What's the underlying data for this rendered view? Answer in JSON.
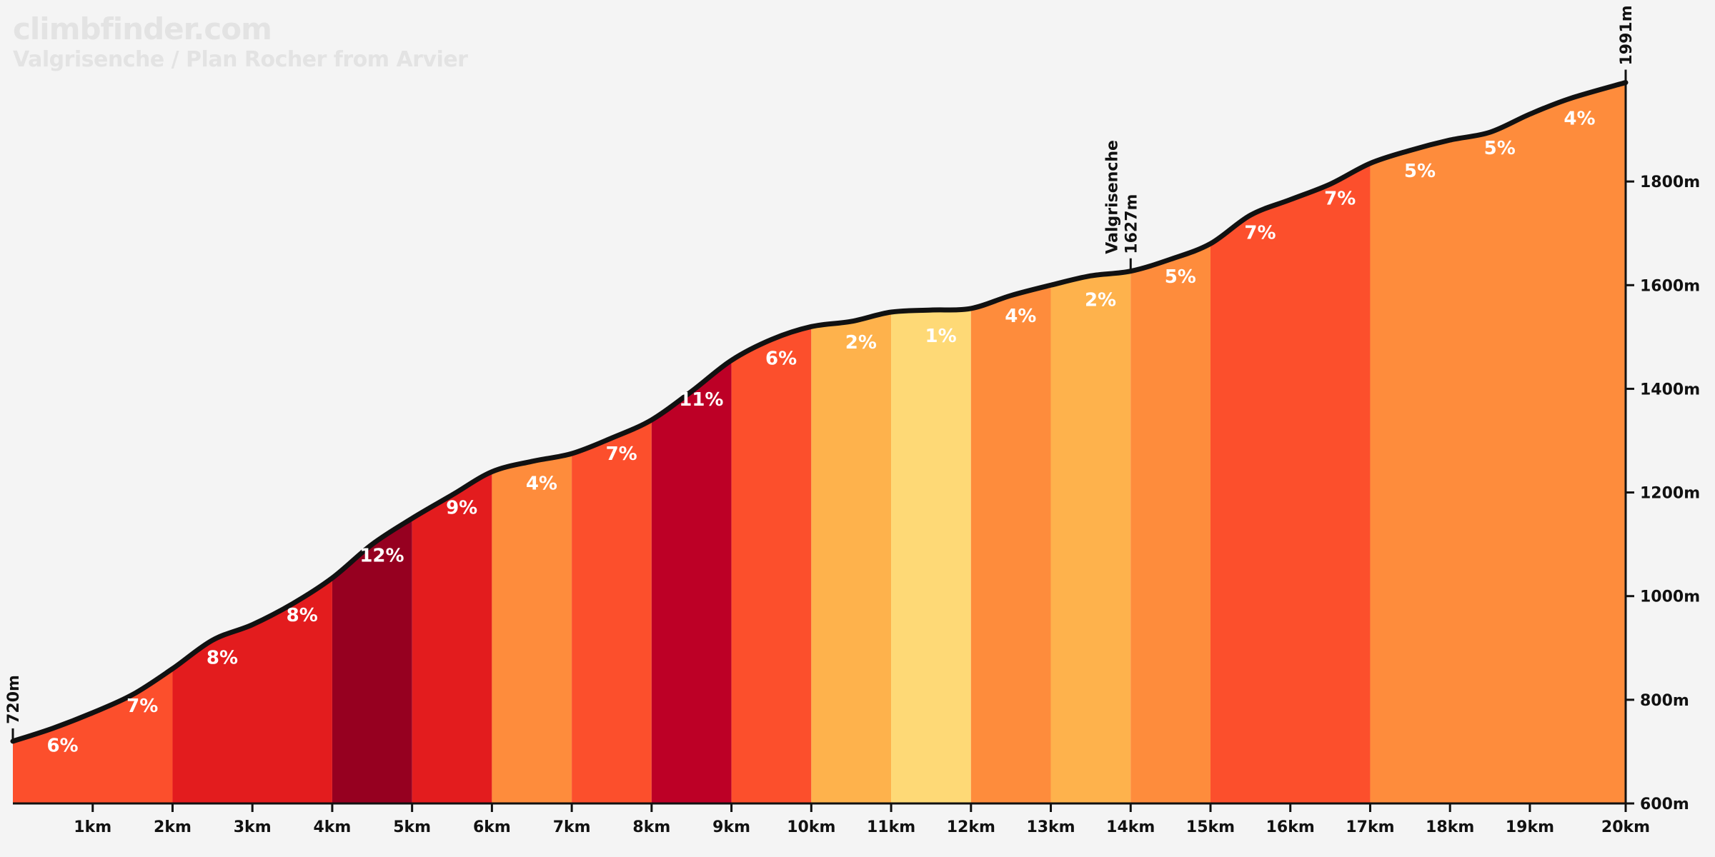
{
  "header": {
    "brand": "climbfinder.com",
    "title": "Valgrisenche / Plan Rocher from Arvier"
  },
  "chart_data": {
    "type": "area",
    "xlabel": "",
    "ylabel": "",
    "xlim": [
      0,
      20.2
    ],
    "ylim": [
      600,
      2000
    ],
    "x_ticks": [
      {
        "value": 1,
        "label": "1km"
      },
      {
        "value": 2,
        "label": "2km"
      },
      {
        "value": 3,
        "label": "3km"
      },
      {
        "value": 4,
        "label": "4km"
      },
      {
        "value": 5,
        "label": "5km"
      },
      {
        "value": 6,
        "label": "6km"
      },
      {
        "value": 7,
        "label": "7km"
      },
      {
        "value": 8,
        "label": "8km"
      },
      {
        "value": 9,
        "label": "9km"
      },
      {
        "value": 10,
        "label": "10km"
      },
      {
        "value": 11,
        "label": "11km"
      },
      {
        "value": 12,
        "label": "12km"
      },
      {
        "value": 13,
        "label": "13km"
      },
      {
        "value": 14,
        "label": "14km"
      },
      {
        "value": 15,
        "label": "15km"
      },
      {
        "value": 16,
        "label": "16km"
      },
      {
        "value": 17,
        "label": "17km"
      },
      {
        "value": 18,
        "label": "18km"
      },
      {
        "value": 19,
        "label": "19km"
      },
      {
        "value": 20.2,
        "label": "20km"
      }
    ],
    "y_ticks": [
      {
        "value": 600,
        "label": "600m"
      },
      {
        "value": 800,
        "label": "800m"
      },
      {
        "value": 1000,
        "label": "1000m"
      },
      {
        "value": 1200,
        "label": "1200m"
      },
      {
        "value": 1400,
        "label": "1400m"
      },
      {
        "value": 1600,
        "label": "1600m"
      },
      {
        "value": 1800,
        "label": "1800m"
      }
    ],
    "profile": [
      [
        0,
        720
      ],
      [
        0.5,
        745
      ],
      [
        1,
        775
      ],
      [
        1.5,
        810
      ],
      [
        2,
        860
      ],
      [
        2.5,
        915
      ],
      [
        3,
        945
      ],
      [
        3.5,
        985
      ],
      [
        4,
        1035
      ],
      [
        4.5,
        1100
      ],
      [
        5,
        1150
      ],
      [
        5.5,
        1195
      ],
      [
        6,
        1240
      ],
      [
        6.5,
        1260
      ],
      [
        7,
        1275
      ],
      [
        7.5,
        1305
      ],
      [
        8,
        1340
      ],
      [
        8.5,
        1395
      ],
      [
        9,
        1455
      ],
      [
        9.5,
        1495
      ],
      [
        10,
        1520
      ],
      [
        10.5,
        1530
      ],
      [
        11,
        1548
      ],
      [
        11.5,
        1552
      ],
      [
        12,
        1555
      ],
      [
        12.5,
        1580
      ],
      [
        13,
        1600
      ],
      [
        13.5,
        1618
      ],
      [
        14,
        1627
      ],
      [
        14.5,
        1650
      ],
      [
        15,
        1680
      ],
      [
        15.5,
        1735
      ],
      [
        16,
        1765
      ],
      [
        16.5,
        1795
      ],
      [
        17,
        1835
      ],
      [
        17.5,
        1860
      ],
      [
        18,
        1880
      ],
      [
        18.5,
        1895
      ],
      [
        19,
        1930
      ],
      [
        19.5,
        1960
      ],
      [
        20.2,
        1991
      ]
    ],
    "segments": [
      {
        "from": 0,
        "to": 2,
        "grade": "6%",
        "color": "#fc4f2c"
      },
      {
        "from": 2,
        "to": 4,
        "grade": "8%",
        "color": "#e31c1e"
      },
      {
        "from": 4,
        "to": 5,
        "grade": "12%",
        "color": "#960020"
      },
      {
        "from": 5,
        "to": 6,
        "grade": "9%",
        "color": "#e31c1e"
      },
      {
        "from": 6,
        "to": 7,
        "grade": "4%",
        "color": "#fe8c3c"
      },
      {
        "from": 7,
        "to": 8,
        "grade": "7%",
        "color": "#fc4f2c"
      },
      {
        "from": 8,
        "to": 9,
        "grade": "11%",
        "color": "#bd0026"
      },
      {
        "from": 9,
        "to": 10,
        "grade": "6%",
        "color": "#fc4f2c"
      },
      {
        "from": 10,
        "to": 11,
        "grade": "2%",
        "color": "#feb24c"
      },
      {
        "from": 11,
        "to": 12,
        "grade": "1%",
        "color": "#fed976"
      },
      {
        "from": 12,
        "to": 13,
        "grade": "4%",
        "color": "#fe8c3c"
      },
      {
        "from": 13,
        "to": 14,
        "grade": "2%",
        "color": "#feb24c"
      },
      {
        "from": 14,
        "to": 15,
        "grade": "5%",
        "color": "#fe8c3c"
      },
      {
        "from": 15,
        "to": 17,
        "grade": "7%",
        "color": "#fc4f2c"
      },
      {
        "from": 17,
        "to": 20.2,
        "grade": "5%",
        "color": "#fe8c3c"
      }
    ],
    "grade_labels": [
      {
        "x": 0.3,
        "text": "6%"
      },
      {
        "x": 1.3,
        "text": "7%"
      },
      {
        "x": 2.3,
        "text": "8%"
      },
      {
        "x": 3.3,
        "text": "8%"
      },
      {
        "x": 4.3,
        "text": "12%"
      },
      {
        "x": 5.3,
        "text": "9%"
      },
      {
        "x": 6.3,
        "text": "4%"
      },
      {
        "x": 7.3,
        "text": "7%"
      },
      {
        "x": 8.3,
        "text": "11%"
      },
      {
        "x": 9.3,
        "text": "6%"
      },
      {
        "x": 10.3,
        "text": "2%"
      },
      {
        "x": 11.3,
        "text": "1%"
      },
      {
        "x": 12.3,
        "text": "4%"
      },
      {
        "x": 13.3,
        "text": "2%"
      },
      {
        "x": 14.3,
        "text": "5%"
      },
      {
        "x": 15.3,
        "text": "7%"
      },
      {
        "x": 16.3,
        "text": "7%"
      },
      {
        "x": 17.3,
        "text": "5%"
      },
      {
        "x": 18.3,
        "text": "5%"
      },
      {
        "x": 19.3,
        "text": "4%"
      }
    ],
    "annotations": [
      {
        "x": 0,
        "elevation": 720,
        "lines": [
          "720m"
        ]
      },
      {
        "x": 14,
        "elevation": 1627,
        "lines": [
          "Valgrisenche",
          "1627m"
        ]
      },
      {
        "x": 20.2,
        "elevation": 1991,
        "lines": [
          "1991m"
        ]
      }
    ]
  }
}
